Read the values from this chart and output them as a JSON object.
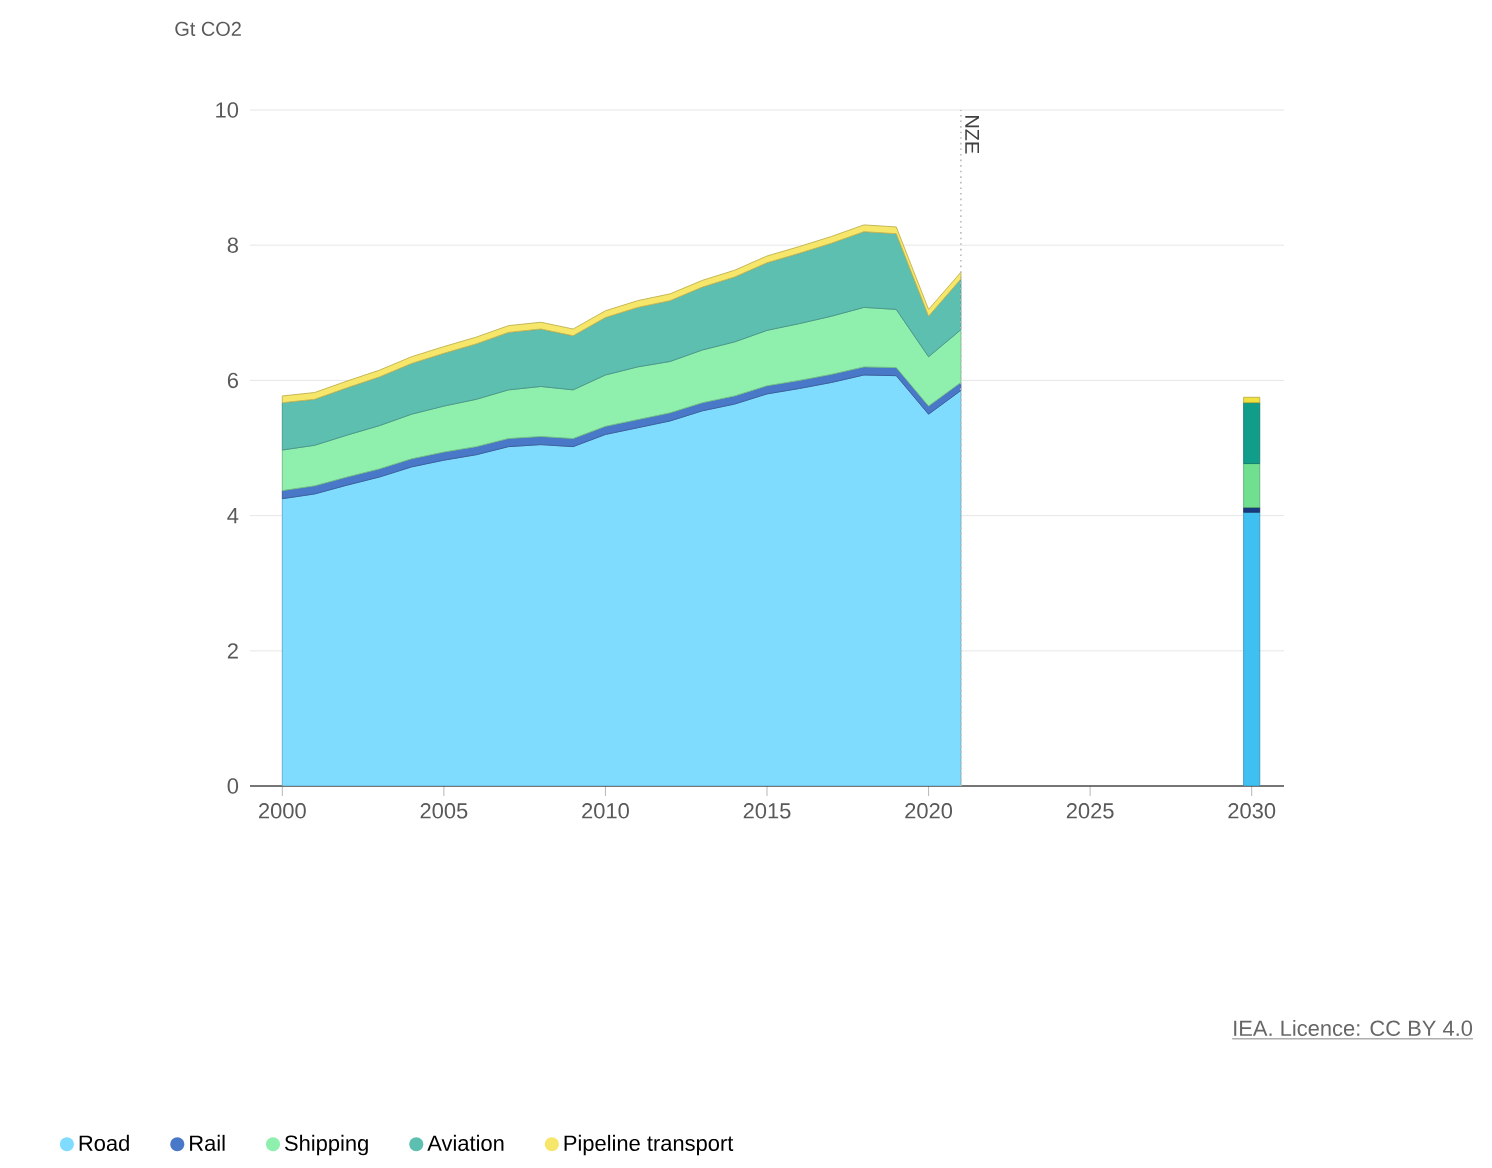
{
  "chart_data": {
    "type": "area",
    "ylabel": "Gt CO2",
    "stacked": true,
    "grid": "y",
    "legend": "bottom",
    "x": [
      2000,
      2001,
      2002,
      2003,
      2004,
      2005,
      2006,
      2007,
      2008,
      2009,
      2010,
      2011,
      2012,
      2013,
      2014,
      2015,
      2016,
      2017,
      2018,
      2019,
      2020,
      2021,
      2030
    ],
    "xlim": [
      1999,
      2031
    ],
    "xticks": [
      2000,
      2005,
      2010,
      2015,
      2020,
      2025,
      2030
    ],
    "ylim": [
      0,
      10
    ],
    "yticks": [
      0,
      2,
      4,
      6,
      8,
      10
    ],
    "series": [
      {
        "name": "Road",
        "color": "#80dcff",
        "values": [
          4.25,
          4.32,
          4.45,
          4.57,
          4.72,
          4.82,
          4.9,
          5.02,
          5.05,
          5.02,
          5.2,
          5.3,
          5.4,
          5.55,
          5.65,
          5.8,
          5.88,
          5.97,
          6.08,
          6.07,
          5.5,
          5.85,
          null
        ]
      },
      {
        "name": "Rail",
        "color": "#4a78c8",
        "values": [
          0.12,
          0.12,
          0.12,
          0.12,
          0.12,
          0.12,
          0.12,
          0.12,
          0.12,
          0.12,
          0.12,
          0.12,
          0.12,
          0.12,
          0.12,
          0.12,
          0.12,
          0.12,
          0.12,
          0.12,
          0.12,
          0.12,
          null
        ]
      },
      {
        "name": "Shipping",
        "color": "#8ff0ae",
        "values": [
          0.6,
          0.6,
          0.62,
          0.64,
          0.66,
          0.68,
          0.7,
          0.72,
          0.74,
          0.72,
          0.76,
          0.78,
          0.76,
          0.78,
          0.8,
          0.82,
          0.84,
          0.86,
          0.88,
          0.86,
          0.73,
          0.78,
          null
        ]
      },
      {
        "name": "Aviation",
        "color": "#5dbfb0",
        "values": [
          0.7,
          0.68,
          0.7,
          0.72,
          0.75,
          0.78,
          0.82,
          0.85,
          0.85,
          0.8,
          0.85,
          0.88,
          0.9,
          0.93,
          0.96,
          1.0,
          1.04,
          1.08,
          1.12,
          1.12,
          0.6,
          0.75,
          null
        ]
      },
      {
        "name": "Pipeline transport",
        "color": "#f6e66a",
        "values": [
          0.1,
          0.1,
          0.1,
          0.1,
          0.1,
          0.1,
          0.1,
          0.1,
          0.1,
          0.1,
          0.1,
          0.1,
          0.1,
          0.1,
          0.1,
          0.1,
          0.1,
          0.1,
          0.1,
          0.1,
          0.1,
          0.1,
          null
        ]
      },
      {
        "type": "bar",
        "color": "#40c0f0",
        "values": [
          null,
          null,
          null,
          null,
          null,
          null,
          null,
          null,
          null,
          null,
          null,
          null,
          null,
          null,
          null,
          null,
          null,
          null,
          null,
          null,
          null,
          null,
          4.05
        ]
      },
      {
        "type": "bar",
        "color": "#1a3a80",
        "values": [
          null,
          null,
          null,
          null,
          null,
          null,
          null,
          null,
          null,
          null,
          null,
          null,
          null,
          null,
          null,
          null,
          null,
          null,
          null,
          null,
          null,
          null,
          0.07
        ]
      },
      {
        "type": "bar",
        "color": "#70e090",
        "values": [
          null,
          null,
          null,
          null,
          null,
          null,
          null,
          null,
          null,
          null,
          null,
          null,
          null,
          null,
          null,
          null,
          null,
          null,
          null,
          null,
          null,
          null,
          0.65
        ]
      },
      {
        "type": "bar",
        "color": "#109e8a",
        "values": [
          null,
          null,
          null,
          null,
          null,
          null,
          null,
          null,
          null,
          null,
          null,
          null,
          null,
          null,
          null,
          null,
          null,
          null,
          null,
          null,
          null,
          null,
          0.9
        ]
      },
      {
        "type": "bar",
        "color": "#f0e040",
        "values": [
          null,
          null,
          null,
          null,
          null,
          null,
          null,
          null,
          null,
          null,
          null,
          null,
          null,
          null,
          null,
          null,
          null,
          null,
          null,
          null,
          null,
          null,
          0.08
        ]
      }
    ],
    "ref_lines": [
      {
        "axis": "x",
        "value": 2021,
        "label": "NZE",
        "color": "#bbbbbb",
        "line_style": "dotted"
      }
    ],
    "annotations": [
      "IEA. Licence: CC BY 4.0"
    ]
  }
}
